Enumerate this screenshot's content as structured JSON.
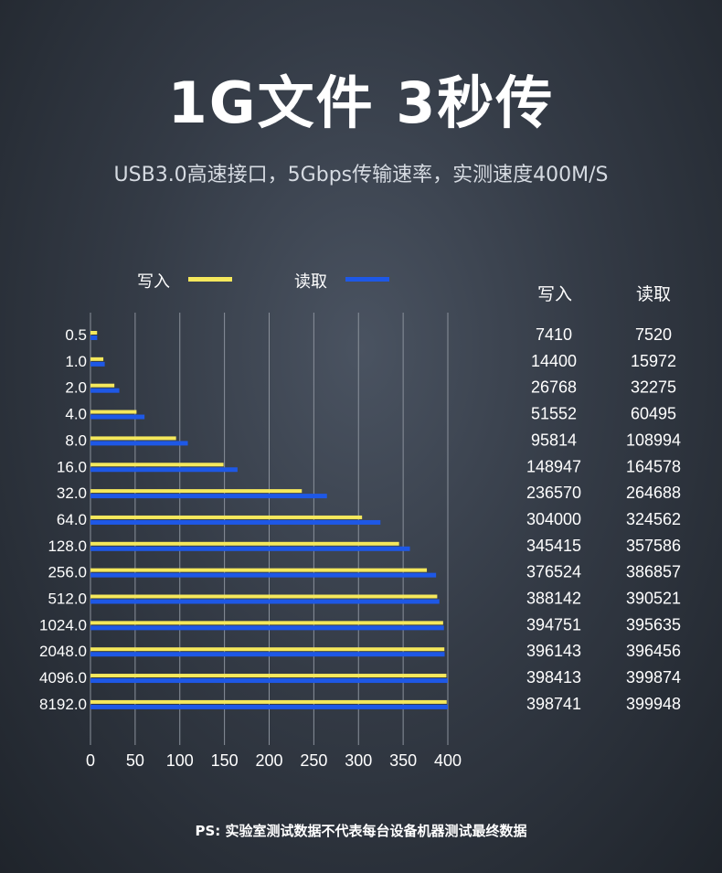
{
  "header": {
    "title": "1G文件 3秒传",
    "subtitle": "USB3.0高速接口，5Gbps传输速率，实测速度400M/S"
  },
  "footnote": "PS: 实验室测试数据不代表每台设备机器测试最终数据",
  "colors": {
    "write": "#f5e85c",
    "read": "#1e58e6",
    "grid": "#8a919b"
  },
  "table": {
    "headers": [
      "写入",
      "读取"
    ]
  },
  "chart_data": {
    "type": "bar",
    "orientation": "horizontal",
    "categories": [
      "0.5",
      "1.0",
      "2.0",
      "4.0",
      "8.0",
      "16.0",
      "32.0",
      "64.0",
      "128.0",
      "256.0",
      "512.0",
      "1024.0",
      "2048.0",
      "4096.0",
      "8192.0"
    ],
    "series": [
      {
        "name": "写入",
        "values": [
          7410,
          14400,
          26768,
          51552,
          95814,
          148947,
          236570,
          304000,
          345415,
          376524,
          388142,
          394751,
          396143,
          398413,
          398741
        ]
      },
      {
        "name": "读取",
        "values": [
          7520,
          15972,
          32275,
          60495,
          108994,
          164578,
          264688,
          324562,
          357586,
          386857,
          390521,
          395635,
          396456,
          399874,
          399948
        ]
      }
    ],
    "xticks": [
      "0",
      "50",
      "100",
      "150",
      "200",
      "250",
      "300",
      "350",
      "400"
    ],
    "xlim": [
      0,
      400
    ],
    "value_scale": 1000,
    "grid": true,
    "legend": "top"
  }
}
